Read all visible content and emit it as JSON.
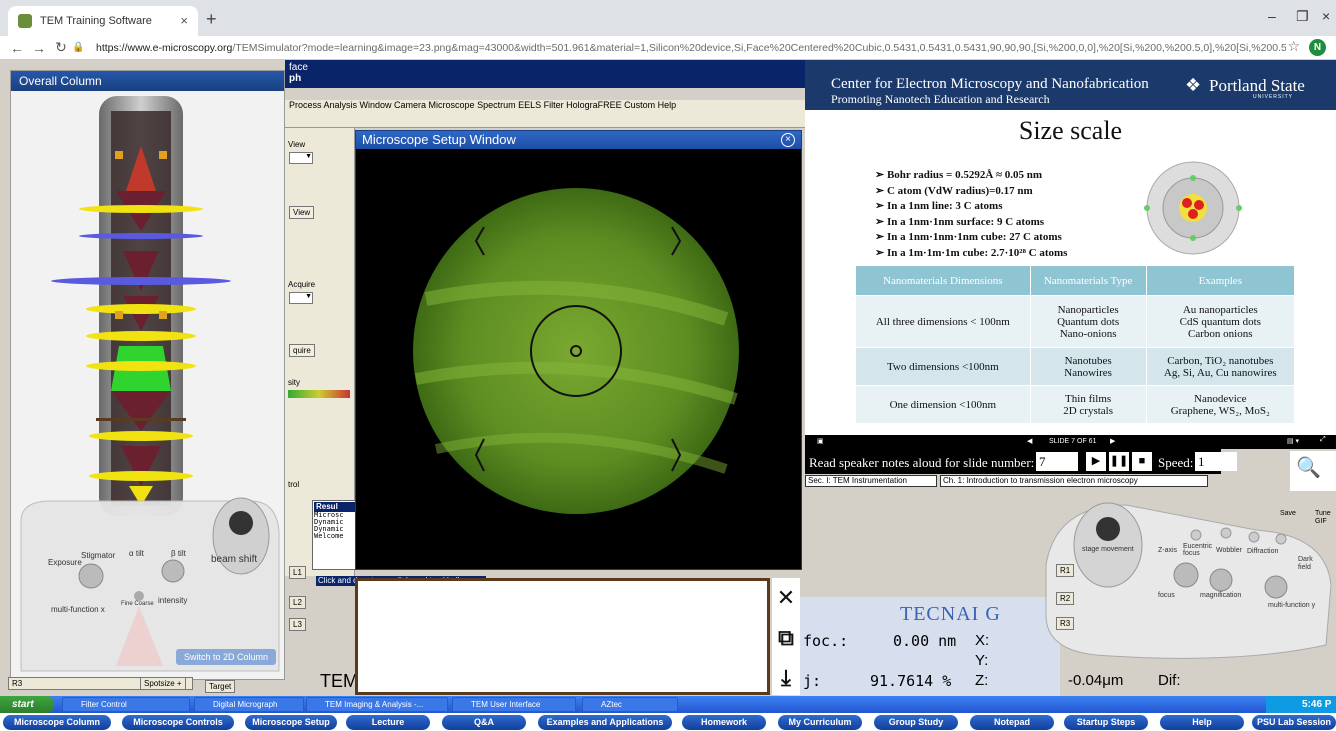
{
  "browser": {
    "tab_title": "TEM Training Software",
    "tab_close": "×",
    "new_tab": "+",
    "url_host": "https://www.e-microscopy.org",
    "url_path": "/TEMSimulator?mode=learning&image=23.png&mag=43000&width=501.961&material=1,Silicon%20device,Si,Face%20Centered%20Cubic,0.5431,0.5431,0.5431,90,90,90,[Si,%200,0,0],%20[Si,%200,%200.5,0],%20[Si,%200.5,0,0],%20[Si,%20...",
    "profile_initial": "N",
    "minimize": "–",
    "maximize": "❐",
    "close": "×"
  },
  "left_panel": {
    "title": "Overall Column",
    "switch_button": "Switch to 2D Column",
    "labels": {
      "exposure": "Exposure",
      "stigmator": "Stigmator",
      "a_tilt": "α tilt",
      "b_tilt": "β tilt",
      "beam_shift": "beam shift",
      "fine_coarse": "Fine Coarse",
      "intensity": "intensity",
      "multi_function_x": "multi-function x"
    },
    "bottom_left": "R3",
    "spotsize": "Spotsize +",
    "target": "Target"
  },
  "gm": {
    "title_fragment": "face",
    "title_fragment2": "ph",
    "menu": "Process  Analysis  Window  Camera  Microscope  Spectrum  EELS  Filter  HolograFREE  Custom  Help",
    "side_labels": {
      "view": "View",
      "view_btn": "View",
      "acquire": "Acquire",
      "acquire_btn": "quire",
      "density": "sity",
      "ctrl": "trol"
    },
    "result_title": "Resul",
    "result_lines": [
      "Microsc",
      "Dynamic",
      "Dynamic",
      "Welcome"
    ],
    "drag_tip": "Click and drag to use dials and trackballs",
    "l1": "L1",
    "l2": "L2",
    "l3": "L3",
    "tem_text": "TEM"
  },
  "setup_window": {
    "title": "Microscope Setup Window",
    "close": "×"
  },
  "notes_tools": {
    "close": "✕",
    "copy": "⧉",
    "download": "⤓"
  },
  "tecnai": {
    "title": "TECNAI G",
    "foc_label": "foc.:",
    "foc_value": "0.00 nm",
    "x": "X:",
    "y": "Y:",
    "int_label": "j:",
    "int_value": "91.7614 %",
    "z": "Z:",
    "z_value": "-0.04μm",
    "dif": "Dif:"
  },
  "slide": {
    "center": "Center for Electron Microscopy and Nanofabrication",
    "promote": "Promoting Nanotech Education and Research",
    "logo": "Portland State",
    "logo_sub": "UNIVERSITY",
    "title": "Size scale",
    "bullets": [
      "➢ Bohr radius = 0.5292Å ≈ 0.05 nm",
      "➢ C atom (VdW radius)=0.17 nm",
      "➢ In a 1nm line: 3 C atoms",
      "➢ In a 1nm·1nm  surface: 9 C atoms",
      "➢ In a 1nm·1nm·1nm cube: 27 C  atoms",
      "➢ In a 1m·1m·1m cube: 2.7·10²⁸ C atoms"
    ],
    "table": {
      "headers": [
        "Nanomaterials Dimensions",
        "Nanomaterials Type",
        "Examples"
      ],
      "rows": [
        [
          "All three dimensions < 100nm",
          "Nanoparticles\nQuantum dots\nNano-onions",
          "Au nanoparticles\nCdS quantum dots\nCarbon onions"
        ],
        [
          "Two dimensions <100nm",
          "Nanotubes\nNanowires",
          "Carbon, TiO₂ nanotubes\nAg, Si, Au, Cu nanowires"
        ],
        [
          "One dimension <100nm",
          "Thin films\n2D crystals",
          "Nanodevice\nGraphene, WS₂, MoS₂"
        ]
      ]
    },
    "slide_counter": "SLIDE 7 OF 61",
    "speaker_label": "Read speaker notes aloud for slide number:",
    "slide_number": "7",
    "speed_label": "Speed:",
    "speed_value": "1",
    "section": "Sec. I: TEM Instrumentation",
    "chapter": "Ch. 1: Introduction to transmission electron microscopy"
  },
  "right_controller": {
    "stage_movement": "stage movement",
    "z_axis": "Z-axis",
    "eucentric_focus": "Eucentric focus",
    "wobbler": "Wobbler",
    "diffraction": "Diffraction",
    "dark_field": "Dark field",
    "focus": "focus",
    "magnification": "magnification",
    "multi_function_y": "multi-function y",
    "r1": "R1",
    "r2": "R2",
    "r3": "R3",
    "save": "Save",
    "tune": "Tune GIF"
  },
  "taskbar": {
    "start": "start",
    "items": [
      "Filter Control",
      "Digital Micrograph",
      "TEM Imaging & Analysis -...",
      "TEM User Interface",
      "AZtec"
    ],
    "time": "5:46 P"
  },
  "bottom_nav": [
    "Microscope Column",
    "Microscope Controls",
    "Microscope Setup",
    "Lecture",
    "Q&A",
    "Examples and Applications",
    "Homework",
    "My Curriculum",
    "Group Study",
    "Notepad",
    "Startup Steps",
    "Help",
    "PSU Lab Session"
  ]
}
